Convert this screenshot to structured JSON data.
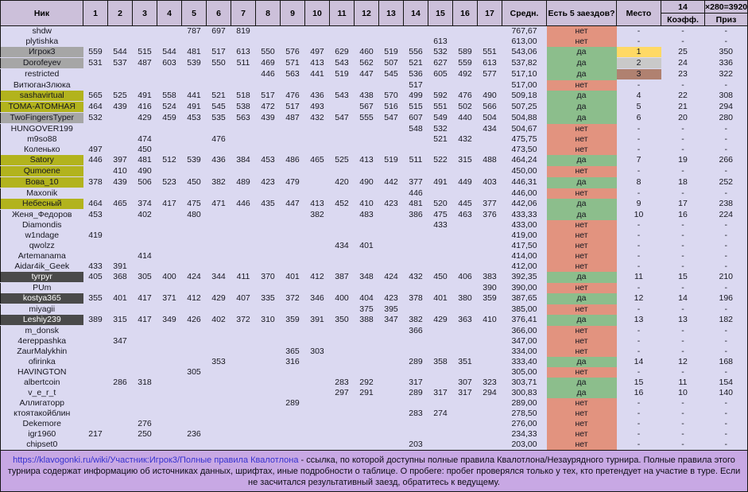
{
  "table": {
    "nick_header": "Ник",
    "race_columns": [
      "1",
      "2",
      "3",
      "4",
      "5",
      "6",
      "7",
      "8",
      "9",
      "10",
      "11",
      "12",
      "13",
      "14",
      "15",
      "16",
      "17"
    ],
    "avg_header": "Средн.",
    "five_header": "Есть 5 заездов?",
    "place_header": "Место",
    "coeff_top": "14",
    "prize_top": "×280=3920",
    "coeff_header": "Коэфф.",
    "prize_header": "Приз",
    "rows": [
      {
        "nick": "shdw",
        "hl": "none",
        "scores": {
          "5": "787",
          "6": "697",
          "7": "819"
        },
        "avg": "767,67",
        "five": "нет",
        "place": "-",
        "coeff": "-",
        "prize": "-"
      },
      {
        "nick": "plytishka",
        "hl": "none",
        "scores": {
          "15": "613"
        },
        "avg": "613,00",
        "five": "нет",
        "place": "-",
        "coeff": "-",
        "prize": "-"
      },
      {
        "nick": "Игрок3",
        "hl": "gray",
        "medal": "gold",
        "scores": {
          "1": "559",
          "2": "544",
          "3": "515",
          "4": "544",
          "5": "481",
          "6": "517",
          "7": "613",
          "8": "550",
          "9": "576",
          "10": "497",
          "11": "629",
          "12": "460",
          "13": "519",
          "14": "556",
          "15": "532",
          "16": "589",
          "17": "551"
        },
        "avg": "543,06",
        "five": "да",
        "place": "1",
        "coeff": "25",
        "prize": "350"
      },
      {
        "nick": "Dorofeyev",
        "hl": "gray",
        "medal": "silver",
        "scores": {
          "1": "531",
          "2": "537",
          "3": "487",
          "4": "603",
          "5": "539",
          "6": "550",
          "7": "511",
          "8": "469",
          "9": "571",
          "10": "413",
          "11": "543",
          "12": "562",
          "13": "507",
          "14": "521",
          "15": "627",
          "16": "559",
          "17": "613"
        },
        "avg": "537,82",
        "five": "да",
        "place": "2",
        "coeff": "24",
        "prize": "336"
      },
      {
        "nick": "restricted",
        "hl": "none",
        "medal": "bronze",
        "scores": {
          "8": "446",
          "9": "563",
          "10": "441",
          "11": "519",
          "12": "447",
          "13": "545",
          "14": "536",
          "15": "605",
          "16": "492",
          "17": "577"
        },
        "avg": "517,10",
        "five": "да",
        "place": "3",
        "coeff": "23",
        "prize": "322"
      },
      {
        "nick": "ВитюганЗлюка",
        "hl": "none",
        "scores": {
          "14": "517"
        },
        "avg": "517,00",
        "five": "нет",
        "place": "-",
        "coeff": "-",
        "prize": "-"
      },
      {
        "nick": "sashavirtual",
        "hl": "olive",
        "scores": {
          "1": "565",
          "2": "525",
          "3": "491",
          "4": "558",
          "5": "441",
          "6": "521",
          "7": "518",
          "8": "517",
          "9": "476",
          "10": "436",
          "11": "543",
          "12": "438",
          "13": "570",
          "14": "499",
          "15": "592",
          "16": "476",
          "17": "490"
        },
        "avg": "509,18",
        "five": "да",
        "place": "4",
        "coeff": "22",
        "prize": "308"
      },
      {
        "nick": "ТОМА-АТОМНАЯ",
        "hl": "olive",
        "scores": {
          "1": "464",
          "2": "439",
          "3": "416",
          "4": "524",
          "5": "491",
          "6": "545",
          "7": "538",
          "8": "472",
          "9": "517",
          "10": "493",
          "12": "567",
          "13": "516",
          "14": "515",
          "15": "551",
          "16": "502",
          "17": "566"
        },
        "avg": "507,25",
        "five": "да",
        "place": "5",
        "coeff": "21",
        "prize": "294"
      },
      {
        "nick": "TwoFingersTyper",
        "hl": "gray",
        "scores": {
          "1": "532",
          "3": "429",
          "4": "459",
          "5": "453",
          "6": "535",
          "7": "563",
          "8": "439",
          "9": "487",
          "10": "432",
          "11": "547",
          "12": "555",
          "13": "547",
          "14": "607",
          "15": "549",
          "16": "440",
          "17": "504"
        },
        "avg": "504,88",
        "five": "да",
        "place": "6",
        "coeff": "20",
        "prize": "280"
      },
      {
        "nick": "HUNGOVER199",
        "hl": "none",
        "scores": {
          "14": "548",
          "15": "532",
          "17": "434"
        },
        "avg": "504,67",
        "five": "нет",
        "place": "-",
        "coeff": "-",
        "prize": "-"
      },
      {
        "nick": "m9so88",
        "hl": "none",
        "scores": {
          "3": "474",
          "6": "476",
          "15": "521",
          "16": "432"
        },
        "avg": "475,75",
        "five": "нет",
        "place": "-",
        "coeff": "-",
        "prize": "-"
      },
      {
        "nick": "Коленько",
        "hl": "none",
        "scores": {
          "1": "497",
          "3": "450"
        },
        "avg": "473,50",
        "five": "нет",
        "place": "-",
        "coeff": "-",
        "prize": "-"
      },
      {
        "nick": "Satory",
        "hl": "olive",
        "scores": {
          "1": "446",
          "2": "397",
          "3": "481",
          "4": "512",
          "5": "539",
          "6": "436",
          "7": "384",
          "8": "453",
          "9": "486",
          "10": "465",
          "11": "525",
          "12": "413",
          "13": "519",
          "14": "511",
          "15": "522",
          "16": "315",
          "17": "488"
        },
        "avg": "464,24",
        "five": "да",
        "place": "7",
        "coeff": "19",
        "prize": "266"
      },
      {
        "nick": "Qumoene",
        "hl": "olive",
        "scores": {
          "2": "410",
          "3": "490"
        },
        "avg": "450,00",
        "five": "нет",
        "place": "-",
        "coeff": "-",
        "prize": "-"
      },
      {
        "nick": "Вова_10",
        "hl": "olive",
        "scores": {
          "1": "378",
          "2": "439",
          "3": "506",
          "4": "523",
          "5": "450",
          "6": "382",
          "7": "489",
          "8": "423",
          "9": "479",
          "11": "420",
          "12": "490",
          "13": "442",
          "14": "377",
          "15": "491",
          "16": "449",
          "17": "403"
        },
        "avg": "446,31",
        "five": "да",
        "place": "8",
        "coeff": "18",
        "prize": "252"
      },
      {
        "nick": "Maxonik",
        "hl": "none",
        "scores": {
          "14": "446"
        },
        "avg": "446,00",
        "five": "нет",
        "place": "-",
        "coeff": "-",
        "prize": "-"
      },
      {
        "nick": "Небесный",
        "hl": "olive",
        "scores": {
          "1": "464",
          "2": "465",
          "3": "374",
          "4": "417",
          "5": "475",
          "6": "471",
          "7": "446",
          "8": "435",
          "9": "447",
          "10": "413",
          "11": "452",
          "12": "410",
          "13": "423",
          "14": "481",
          "15": "520",
          "16": "445",
          "17": "377"
        },
        "avg": "442,06",
        "five": "да",
        "place": "9",
        "coeff": "17",
        "prize": "238"
      },
      {
        "nick": "Женя_Федоров",
        "hl": "none",
        "scores": {
          "1": "453",
          "3": "402",
          "5": "480",
          "10": "382",
          "12": "483",
          "14": "386",
          "15": "475",
          "16": "463",
          "17": "376"
        },
        "avg": "433,33",
        "five": "да",
        "place": "10",
        "coeff": "16",
        "prize": "224"
      },
      {
        "nick": "Diamondis",
        "hl": "none",
        "scores": {
          "15": "433"
        },
        "avg": "433,00",
        "five": "нет",
        "place": "-",
        "coeff": "-",
        "prize": "-"
      },
      {
        "nick": "w1ndage",
        "hl": "none",
        "scores": {
          "1": "419"
        },
        "avg": "419,00",
        "five": "нет",
        "place": "-",
        "coeff": "-",
        "prize": "-"
      },
      {
        "nick": "qwolzz",
        "hl": "none",
        "scores": {
          "11": "434",
          "12": "401"
        },
        "avg": "417,50",
        "five": "нет",
        "place": "-",
        "coeff": "-",
        "prize": "-"
      },
      {
        "nick": "Artemanama",
        "hl": "none",
        "scores": {
          "3": "414"
        },
        "avg": "414,00",
        "five": "нет",
        "place": "-",
        "coeff": "-",
        "prize": "-"
      },
      {
        "nick": "Aidar4ik_Geek",
        "hl": "none",
        "scores": {
          "1": "433",
          "2": "391"
        },
        "avg": "412,00",
        "five": "нет",
        "place": "-",
        "coeff": "-",
        "prize": "-"
      },
      {
        "nick": "tyrpyr",
        "hl": "dark",
        "scores": {
          "1": "405",
          "2": "368",
          "3": "305",
          "4": "400",
          "5": "424",
          "6": "344",
          "7": "411",
          "8": "370",
          "9": "401",
          "10": "412",
          "11": "387",
          "12": "348",
          "13": "424",
          "14": "432",
          "15": "450",
          "16": "406",
          "17": "383"
        },
        "avg": "392,35",
        "five": "да",
        "place": "11",
        "coeff": "15",
        "prize": "210"
      },
      {
        "nick": "PUm",
        "hl": "none",
        "scores": {
          "17": "390"
        },
        "avg": "390,00",
        "five": "нет",
        "place": "-",
        "coeff": "-",
        "prize": "-"
      },
      {
        "nick": "kostya365",
        "hl": "dark",
        "scores": {
          "1": "355",
          "2": "401",
          "3": "417",
          "4": "371",
          "5": "412",
          "6": "429",
          "7": "407",
          "8": "335",
          "9": "372",
          "10": "346",
          "11": "400",
          "12": "404",
          "13": "423",
          "14": "378",
          "15": "401",
          "16": "380",
          "17": "359"
        },
        "avg": "387,65",
        "five": "да",
        "place": "12",
        "coeff": "14",
        "prize": "196"
      },
      {
        "nick": "miyagii",
        "hl": "none",
        "scores": {
          "12": "375",
          "13": "395"
        },
        "avg": "385,00",
        "five": "нет",
        "place": "-",
        "coeff": "-",
        "prize": "-"
      },
      {
        "nick": "Leshiy239",
        "hl": "dark",
        "scores": {
          "1": "389",
          "2": "315",
          "3": "417",
          "4": "349",
          "5": "426",
          "6": "402",
          "7": "372",
          "8": "310",
          "9": "359",
          "10": "391",
          "11": "350",
          "12": "388",
          "13": "347",
          "14": "382",
          "15": "429",
          "16": "363",
          "17": "410"
        },
        "avg": "376,41",
        "five": "да",
        "place": "13",
        "coeff": "13",
        "prize": "182"
      },
      {
        "nick": "m_donsk",
        "hl": "none",
        "scores": {
          "14": "366"
        },
        "avg": "366,00",
        "five": "нет",
        "place": "-",
        "coeff": "-",
        "prize": "-"
      },
      {
        "nick": "4ereppashka",
        "hl": "none",
        "scores": {
          "2": "347"
        },
        "avg": "347,00",
        "five": "нет",
        "place": "-",
        "coeff": "-",
        "prize": "-"
      },
      {
        "nick": "ZaurMalykhin",
        "hl": "none",
        "scores": {
          "9": "365",
          "10": "303"
        },
        "avg": "334,00",
        "five": "нет",
        "place": "-",
        "coeff": "-",
        "prize": "-"
      },
      {
        "nick": "ofirinka",
        "hl": "none",
        "scores": {
          "6": "353",
          "9": "316",
          "14": "289",
          "15": "358",
          "16": "351"
        },
        "avg": "333,40",
        "five": "да",
        "place": "14",
        "coeff": "12",
        "prize": "168"
      },
      {
        "nick": "HAVINGTON",
        "hl": "none",
        "scores": {
          "5": "305"
        },
        "avg": "305,00",
        "five": "нет",
        "place": "-",
        "coeff": "-",
        "prize": "-"
      },
      {
        "nick": "albertcoin",
        "hl": "none",
        "scores": {
          "2": "286",
          "3": "318",
          "11": "283",
          "12": "292",
          "14": "317",
          "16": "307",
          "17": "323"
        },
        "avg": "303,71",
        "five": "да",
        "place": "15",
        "coeff": "11",
        "prize": "154"
      },
      {
        "nick": "v_e_r_t",
        "hl": "none",
        "scores": {
          "11": "297",
          "12": "291",
          "14": "289",
          "15": "317",
          "16": "317",
          "17": "294"
        },
        "avg": "300,83",
        "five": "да",
        "place": "16",
        "coeff": "10",
        "prize": "140"
      },
      {
        "nick": "Аллигаторр",
        "hl": "none",
        "scores": {
          "9": "289"
        },
        "avg": "289,00",
        "five": "нет",
        "place": "-",
        "coeff": "-",
        "prize": "-"
      },
      {
        "nick": "ктоятакойблин",
        "hl": "none",
        "scores": {
          "14": "283",
          "15": "274"
        },
        "avg": "278,50",
        "five": "нет",
        "place": "-",
        "coeff": "-",
        "prize": "-"
      },
      {
        "nick": "Dekemore",
        "hl": "none",
        "scores": {
          "3": "276"
        },
        "avg": "276,00",
        "five": "нет",
        "place": "-",
        "coeff": "-",
        "prize": "-"
      },
      {
        "nick": "igr1960",
        "hl": "none",
        "scores": {
          "1": "217",
          "3": "250",
          "5": "236"
        },
        "avg": "234,33",
        "five": "нет",
        "place": "-",
        "coeff": "-",
        "prize": "-"
      },
      {
        "nick": "chipset0",
        "hl": "none",
        "scores": {
          "14": "203"
        },
        "avg": "203,00",
        "five": "нет",
        "place": "-",
        "coeff": "-",
        "prize": "-"
      }
    ]
  },
  "footer": {
    "link_text": "https://klavogonki.ru/wiki/Участник:Игрок3/Полные правила Квалотлона",
    "text_after_link": " - ссылка, по которой доступны полные правила Квалотлона/Незаурядного турнира. Полные правила этого турнира содержат информацию об источниках данных, шрифтах, иные подробности о таблице. О пробеге: пробег проверялся только у тех, кто претендует на участие в туре. Если не засчитался результативный заезд, обратитесь к ведущему."
  },
  "colors": {
    "header_bg": "#ccc0da",
    "body_bg": "#dbd9f1",
    "gray_highlight": "#a6a6a6",
    "olive_highlight": "#b2b31d",
    "dark_highlight": "#4a4a4a",
    "yes_green": "#8cbe8c",
    "no_salmon": "#e2937f",
    "place_gold": "#ffd965",
    "place_silver": "#c9c9c9",
    "place_bronze": "#b08170",
    "footer_bg": "#c8a8e4",
    "link_blue": "#3632cf"
  }
}
